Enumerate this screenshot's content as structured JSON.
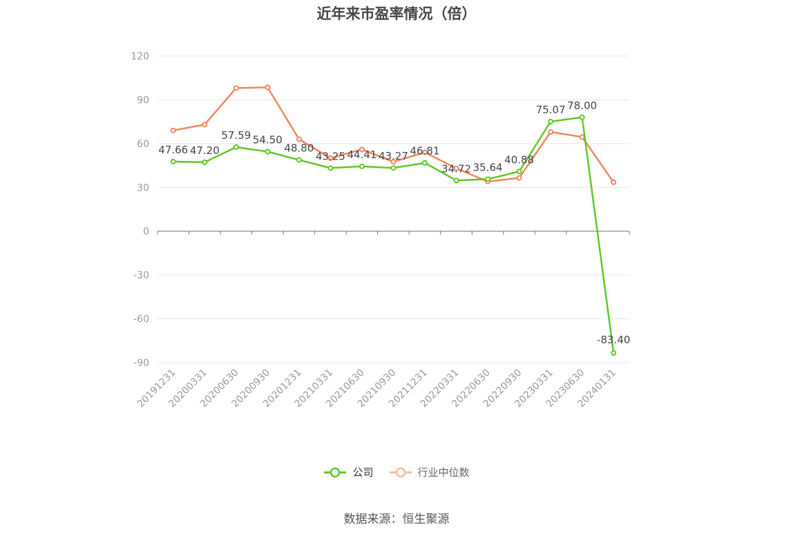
{
  "chart_data": {
    "type": "line",
    "title": "近年来市盈率情况（倍）",
    "categories": [
      "20191231",
      "20200331",
      "20200630",
      "20200930",
      "20201231",
      "20210331",
      "20210630",
      "20210930",
      "20211231",
      "20220331",
      "20220630",
      "20220930",
      "20230331",
      "20230630",
      "20240131"
    ],
    "series": [
      {
        "name": "公司",
        "color": "#5ec925",
        "values": [
          47.66,
          47.2,
          57.59,
          54.5,
          48.8,
          43.25,
          44.41,
          43.27,
          46.81,
          34.72,
          35.64,
          40.88,
          75.07,
          78.0,
          -83.4
        ],
        "labels": [
          "47.66",
          "47.20",
          "57.59",
          "54.50",
          "48.80",
          "43.25",
          "44.41",
          "43.27",
          "46.81",
          "34.72",
          "35.64",
          "40.88",
          "75.07",
          "78.00",
          "-83.40"
        ]
      },
      {
        "name": "行业中位数",
        "color": "#f0875a",
        "values": [
          69,
          73,
          98,
          98.5,
          63,
          50,
          56,
          47.5,
          54,
          43,
          34,
          36.5,
          68,
          64.5,
          33.5
        ]
      }
    ],
    "y_ticks": [
      "120",
      "90",
      "60",
      "30",
      "0",
      "-30",
      "-60",
      "-90"
    ],
    "ylim": [
      -90,
      120
    ],
    "xlabel": "",
    "ylabel": "",
    "grid": true,
    "legend_position": "bottom"
  },
  "legend": {
    "company": "公司",
    "industry": "行业中位数"
  },
  "source": "数据来源：恒生聚源"
}
